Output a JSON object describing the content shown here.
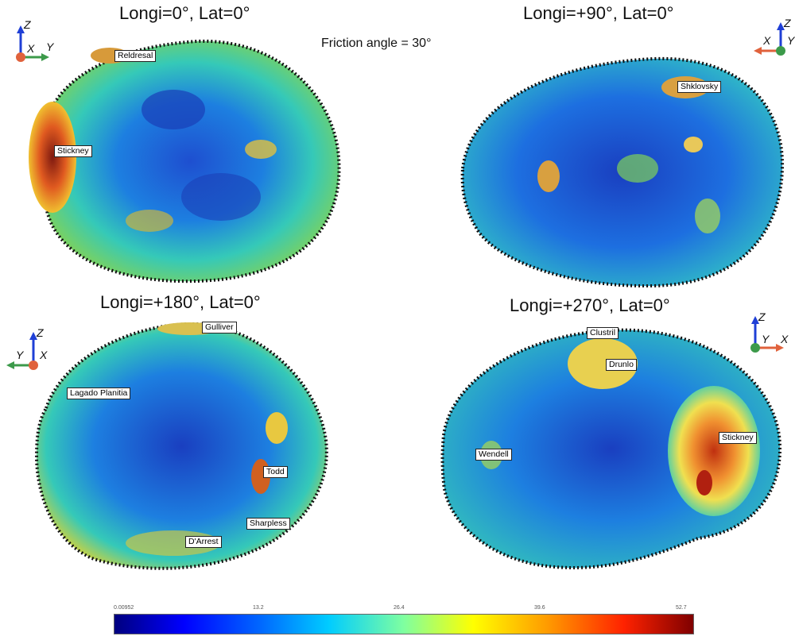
{
  "figure_title": "Friction angle = 30°",
  "panels": [
    {
      "title": "Longi=0°, Lat=0°",
      "axes": [
        "Z",
        "X",
        "Y"
      ],
      "craters": [
        "Reldresal",
        "Stickney"
      ]
    },
    {
      "title": "Longi=+90°, Lat=0°",
      "axes": [
        "Z",
        "X",
        "Y"
      ],
      "craters": [
        "Shklovsky"
      ]
    },
    {
      "title": "Longi=+180°, Lat=0°",
      "axes": [
        "Z",
        "Y",
        "X"
      ],
      "craters": [
        "Gulliver",
        "Lagado Planitia",
        "Todd",
        "Sharpless",
        "D'Arrest"
      ]
    },
    {
      "title": "Longi=+270°, Lat=0°",
      "axes": [
        "Z",
        "Y",
        "X"
      ],
      "craters": [
        "Clustril",
        "Drunlo",
        "Wendell",
        "Stickney"
      ]
    }
  ],
  "axis_colors": {
    "Z": "#1f3fd6",
    "X": "#e0623c",
    "Y": "#3c9a4a"
  },
  "colorbar": {
    "ticks": [
      "0.00952",
      "13.2",
      "26.4",
      "39.6",
      "52.7"
    ]
  }
}
